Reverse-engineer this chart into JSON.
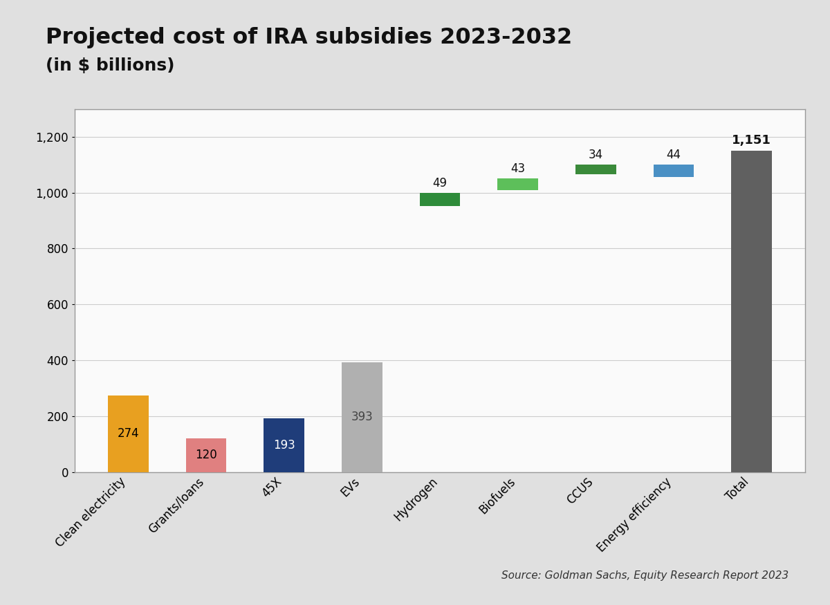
{
  "categories": [
    "Clean electricity",
    "Grants/loans",
    "45X",
    "EVs",
    "Hydrogen",
    "Biofuels",
    "CCUS",
    "Energy efficiency",
    "Total"
  ],
  "values": [
    274,
    120,
    193,
    393,
    49,
    43,
    34,
    44,
    1151
  ],
  "bar_colors": [
    "#E8A020",
    "#E08080",
    "#1F3D7A",
    "#B0B0B0",
    "#2E8B3A",
    "#5DBF5A",
    "#3A8A3A",
    "#4A90C4",
    "#606060"
  ],
  "label_colors": [
    "#000000",
    "#000000",
    "#ffffff",
    "#ffffff",
    "#000000",
    "#000000",
    "#000000",
    "#000000",
    "#ffffff"
  ],
  "floating_base": [
    0,
    0,
    0,
    0,
    951,
    1008,
    1067,
    1057,
    0
  ],
  "title_line1": "Projected cost of IRA subsidies 2023-2032",
  "title_line2": "(in $ billions)",
  "source_text": "Source: Goldman Sachs, Equity Research Report 2023",
  "ylim": [
    0,
    1300
  ],
  "yticks": [
    0,
    200,
    400,
    600,
    800,
    1000,
    1200
  ],
  "ytick_labels": [
    "0",
    "200",
    "400",
    "600",
    "800",
    "1,000",
    "1,200"
  ],
  "figure_bg": "#e0e0e0",
  "plot_bg": "#fafafa",
  "grid_color": "#cccccc",
  "border_color": "#aaaaaa"
}
